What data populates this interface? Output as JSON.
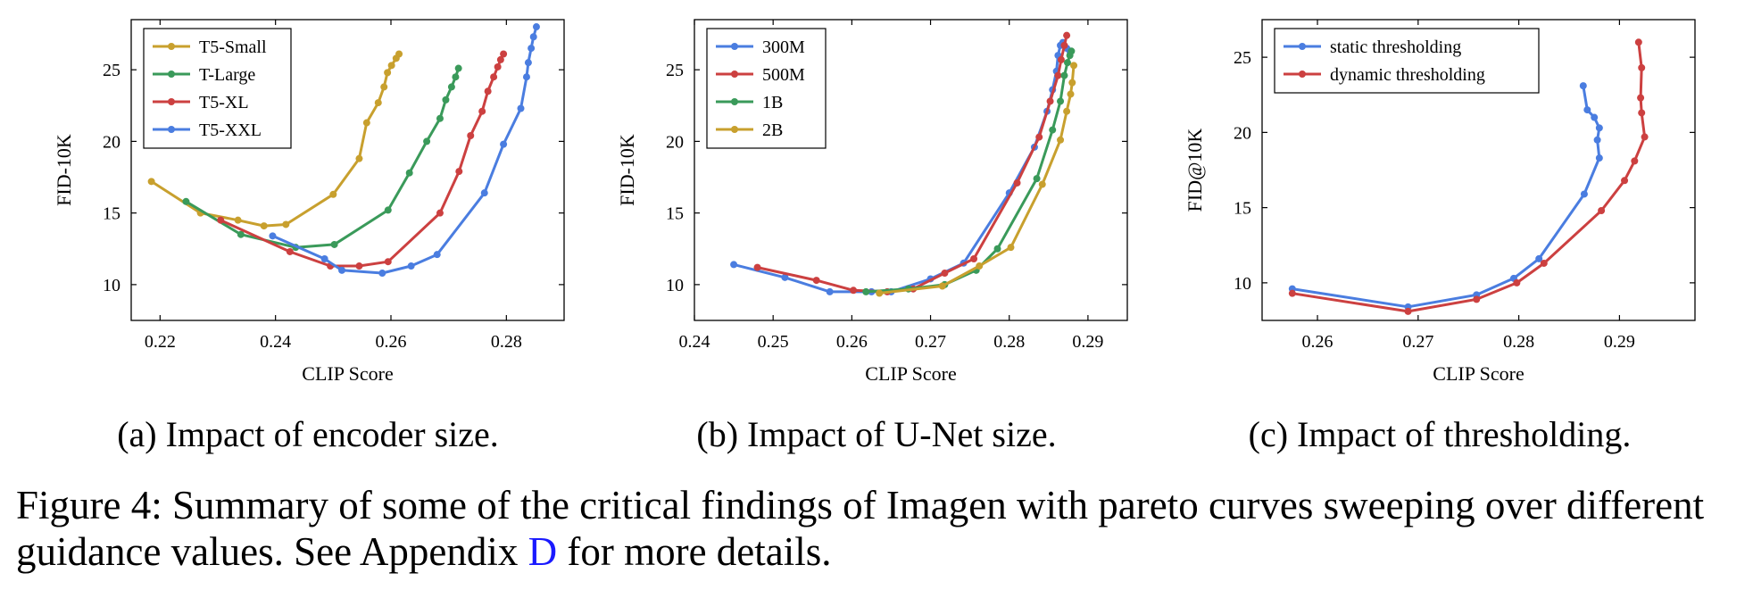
{
  "panels": [
    {
      "id": "a",
      "caption": "(a) Impact of encoder size.",
      "chart_data": {
        "type": "line",
        "title": "",
        "xlabel": "CLIP Score",
        "ylabel": "FID-10K",
        "xlim": [
          0.215,
          0.29
        ],
        "ylim": [
          7.5,
          28.5
        ],
        "xticks": [
          0.22,
          0.24,
          0.26,
          0.28
        ],
        "yticks": [
          10,
          15,
          20,
          25
        ],
        "grid": false,
        "legend_position": "top-left",
        "series": [
          {
            "name": "T5-Small",
            "color": "#c8a02e",
            "x": [
              0.2185,
              0.227,
              0.2335,
              0.238,
              0.2418,
              0.25,
              0.2545,
              0.2558,
              0.2578,
              0.2588,
              0.2594,
              0.2601,
              0.2609,
              0.2614
            ],
            "y": [
              17.2,
              15.0,
              14.5,
              14.1,
              14.2,
              16.3,
              18.8,
              21.3,
              22.7,
              23.8,
              24.8,
              25.3,
              25.8,
              26.1
            ]
          },
          {
            "name": "T-Large",
            "color": "#3a9a5a",
            "x": [
              0.2245,
              0.234,
              0.2435,
              0.2502,
              0.2595,
              0.2632,
              0.2662,
              0.2685,
              0.2695,
              0.2705,
              0.2712,
              0.2717
            ],
            "y": [
              15.8,
              13.5,
              12.6,
              12.8,
              15.2,
              17.8,
              20.0,
              21.6,
              22.9,
              23.8,
              24.5,
              25.1
            ]
          },
          {
            "name": "T5-XL",
            "color": "#cc4040",
            "x": [
              0.2305,
              0.2425,
              0.2495,
              0.2545,
              0.2595,
              0.2685,
              0.2718,
              0.2738,
              0.2758,
              0.2768,
              0.2778,
              0.2785,
              0.279,
              0.2795
            ],
            "y": [
              14.5,
              12.3,
              11.3,
              11.3,
              11.6,
              15.0,
              17.9,
              20.4,
              22.1,
              23.5,
              24.5,
              25.2,
              25.7,
              26.1
            ]
          },
          {
            "name": "T5-XXL",
            "color": "#4a7de0",
            "x": [
              0.2395,
              0.2485,
              0.2515,
              0.2585,
              0.2635,
              0.268,
              0.2762,
              0.2795,
              0.2825,
              0.2835,
              0.2838,
              0.2843,
              0.2847,
              0.2852
            ],
            "y": [
              13.4,
              11.8,
              11.0,
              10.8,
              11.3,
              12.1,
              16.4,
              19.8,
              22.3,
              24.5,
              25.5,
              26.5,
              27.3,
              28.0
            ]
          }
        ]
      }
    },
    {
      "id": "b",
      "caption": "(b) Impact of U-Net size.",
      "chart_data": {
        "type": "line",
        "title": "",
        "xlabel": "CLIP Score",
        "ylabel": "FID-10K",
        "xlim": [
          0.24,
          0.295
        ],
        "ylim": [
          7.5,
          28.5
        ],
        "xticks": [
          0.24,
          0.25,
          0.26,
          0.27,
          0.28,
          0.29
        ],
        "yticks": [
          10,
          15,
          20,
          25
        ],
        "grid": false,
        "legend_position": "top-left",
        "series": [
          {
            "name": "300M",
            "color": "#4a7de0",
            "x": [
              0.245,
              0.2515,
              0.2572,
              0.2625,
              0.265,
              0.27,
              0.2742,
              0.28,
              0.2832,
              0.2848,
              0.2855,
              0.286,
              0.2862,
              0.2865,
              0.2868,
              0.2873,
              0.2877
            ],
            "y": [
              11.4,
              10.5,
              9.5,
              9.5,
              9.5,
              10.4,
              11.5,
              16.4,
              19.6,
              22.1,
              23.6,
              24.9,
              26.0,
              26.7,
              26.9,
              26.5,
              26.3
            ]
          },
          {
            "name": "500M",
            "color": "#cc4040",
            "x": [
              0.248,
              0.2555,
              0.2602,
              0.2645,
              0.2678,
              0.2718,
              0.2755,
              0.281,
              0.2838,
              0.2852,
              0.2862,
              0.2866,
              0.287,
              0.2873
            ],
            "y": [
              11.2,
              10.3,
              9.6,
              9.5,
              9.7,
              10.8,
              11.8,
              17.1,
              20.3,
              22.8,
              24.6,
              25.7,
              26.7,
              27.4
            ]
          },
          {
            "name": "1B",
            "color": "#3a9a5a",
            "x": [
              0.2618,
              0.2672,
              0.2718,
              0.2758,
              0.2785,
              0.2835,
              0.2855,
              0.2865,
              0.287,
              0.2874,
              0.2877,
              0.2879
            ],
            "y": [
              9.5,
              9.7,
              10.0,
              11.0,
              12.5,
              17.4,
              20.8,
              22.8,
              24.6,
              25.5,
              26.0,
              26.3
            ]
          },
          {
            "name": "2B",
            "color": "#c8a02e",
            "x": [
              0.2635,
              0.2715,
              0.2762,
              0.2802,
              0.2842,
              0.2865,
              0.2873,
              0.2878,
              0.288,
              0.2882
            ],
            "y": [
              9.4,
              9.9,
              11.3,
              12.6,
              17.0,
              20.1,
              22.1,
              23.3,
              24.1,
              25.3
            ]
          }
        ]
      }
    },
    {
      "id": "c",
      "caption": "(c) Impact of thresholding.",
      "chart_data": {
        "type": "line",
        "title": "",
        "xlabel": "CLIP Score",
        "ylabel": "FID@10K",
        "xlim": [
          0.2545,
          0.2975
        ],
        "ylim": [
          7.5,
          27.5
        ],
        "xticks": [
          0.26,
          0.27,
          0.28,
          0.29
        ],
        "yticks": [
          10,
          15,
          20,
          25
        ],
        "grid": false,
        "legend_position": "top-left",
        "series": [
          {
            "name": "static thresholding",
            "color": "#4a7de0",
            "x": [
              0.2575,
              0.269,
              0.2758,
              0.2795,
              0.282,
              0.2865,
              0.288,
              0.2878,
              0.288,
              0.2875,
              0.2868,
              0.2864
            ],
            "y": [
              9.6,
              8.4,
              9.2,
              10.3,
              11.6,
              15.9,
              18.3,
              19.5,
              20.3,
              21.0,
              21.5,
              23.1
            ]
          },
          {
            "name": "dynamic thresholding",
            "color": "#cc4040",
            "x": [
              0.2575,
              0.269,
              0.2758,
              0.2798,
              0.2825,
              0.2882,
              0.2905,
              0.2915,
              0.2925,
              0.2922,
              0.2921,
              0.2922,
              0.2919
            ],
            "y": [
              9.3,
              8.1,
              8.9,
              10.0,
              11.3,
              14.8,
              16.8,
              18.1,
              19.7,
              21.3,
              22.3,
              24.3,
              26.0
            ]
          }
        ]
      }
    }
  ],
  "figure_caption": {
    "prefix": "Figure 4: Summary of some of the critical findings of Imagen with pareto curves sweeping over different guidance values. See Appendix",
    "link": "D",
    "suffix": "for more details."
  }
}
